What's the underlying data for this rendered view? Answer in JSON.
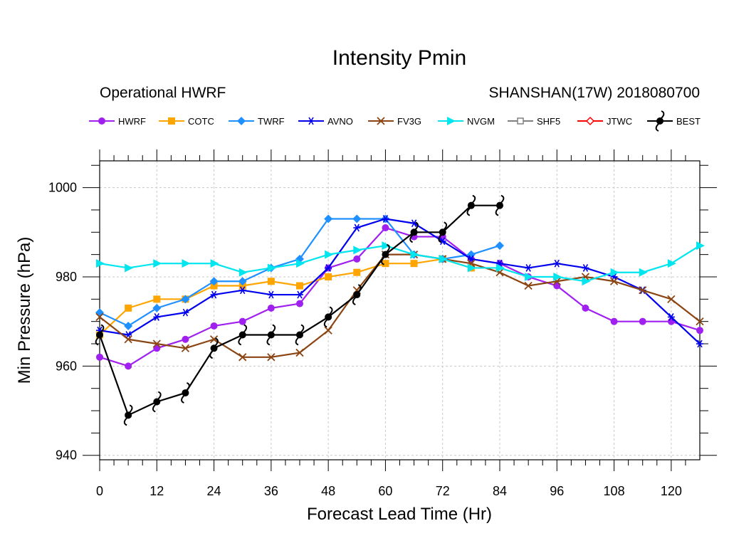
{
  "chart_data": {
    "type": "line",
    "title": "Intensity Pmin",
    "subtitle_left": "Operational HWRF",
    "subtitle_right": "SHANSHAN(17W) 2018080700",
    "xlabel": "Forecast Lead Time (Hr)",
    "ylabel": "Min Pressure (hPa)",
    "xlim": [
      0,
      126
    ],
    "ylim": [
      939,
      1006
    ],
    "xticks": [
      0,
      12,
      24,
      36,
      48,
      60,
      72,
      84,
      96,
      108,
      120
    ],
    "yticks": [
      940,
      960,
      980,
      1000
    ],
    "grid": true,
    "legend_position": "top",
    "series": [
      {
        "name": "HWRF",
        "color": "#a020f0",
        "marker": "circle",
        "x": [
          0,
          6,
          12,
          18,
          24,
          30,
          36,
          42,
          48,
          54,
          60,
          66,
          72,
          78,
          84,
          90,
          96,
          102,
          108,
          114,
          120,
          126
        ],
        "y": [
          962,
          960,
          964,
          966,
          969,
          970,
          973,
          974,
          982,
          984,
          991,
          989,
          989,
          984,
          983,
          980,
          978,
          973,
          970,
          970,
          970,
          968
        ]
      },
      {
        "name": "COTC",
        "color": "#ffa500",
        "marker": "square",
        "x": [
          0,
          6,
          12,
          18,
          24,
          30,
          36,
          42,
          48,
          54,
          60,
          66,
          72,
          78
        ],
        "y": [
          967,
          973,
          975,
          975,
          978,
          978,
          979,
          978,
          980,
          981,
          983,
          983,
          984,
          982
        ]
      },
      {
        "name": "TWRF",
        "color": "#1e90ff",
        "marker": "diamond",
        "x": [
          0,
          6,
          12,
          18,
          24,
          30,
          36,
          42,
          48,
          54,
          60,
          66,
          72,
          78,
          84
        ],
        "y": [
          972,
          969,
          973,
          975,
          979,
          979,
          982,
          984,
          993,
          993,
          993,
          985,
          984,
          985,
          987
        ]
      },
      {
        "name": "AVNO",
        "color": "#0000ee",
        "marker": "asterisk",
        "x": [
          0,
          6,
          12,
          18,
          24,
          30,
          36,
          42,
          48,
          54,
          60,
          66,
          72,
          78,
          84,
          90,
          96,
          102,
          108,
          114,
          120,
          126
        ],
        "y": [
          968,
          967,
          971,
          972,
          976,
          977,
          976,
          976,
          982,
          991,
          993,
          992,
          988,
          984,
          983,
          982,
          983,
          982,
          980,
          977,
          971,
          965
        ]
      },
      {
        "name": "FV3G",
        "color": "#8b4513",
        "marker": "x",
        "x": [
          0,
          6,
          12,
          18,
          24,
          30,
          36,
          42,
          48,
          54,
          60,
          66,
          72,
          78,
          84,
          90,
          96,
          102,
          108,
          114,
          120,
          126
        ],
        "y": [
          971,
          966,
          965,
          964,
          966,
          962,
          962,
          963,
          968,
          977,
          985,
          985,
          984,
          983,
          981,
          978,
          979,
          980,
          979,
          977,
          975,
          970
        ]
      },
      {
        "name": "NVGM",
        "color": "#00e5ee",
        "marker": "triangle-right",
        "x": [
          0,
          6,
          12,
          18,
          24,
          30,
          36,
          42,
          48,
          54,
          60,
          66,
          72,
          78,
          84,
          90,
          96,
          102,
          108,
          114,
          120,
          126
        ],
        "y": [
          983,
          982,
          983,
          983,
          983,
          981,
          982,
          983,
          985,
          986,
          987,
          985,
          984,
          982,
          982,
          980,
          980,
          979,
          981,
          981,
          983,
          987
        ]
      },
      {
        "name": "SHF5",
        "color": "#808080",
        "marker": "open-square",
        "x": [],
        "y": []
      },
      {
        "name": "JTWC",
        "color": "#ff0000",
        "marker": "open-diamond",
        "x": [],
        "y": []
      },
      {
        "name": "BEST",
        "color": "#000000",
        "marker": "storm",
        "x": [
          0,
          6,
          12,
          18,
          24,
          30,
          36,
          42,
          48,
          54,
          60,
          66,
          72,
          78,
          84
        ],
        "y": [
          967,
          949,
          952,
          954,
          964,
          967,
          967,
          967,
          971,
          976,
          985,
          990,
          990,
          996,
          996
        ]
      }
    ]
  }
}
